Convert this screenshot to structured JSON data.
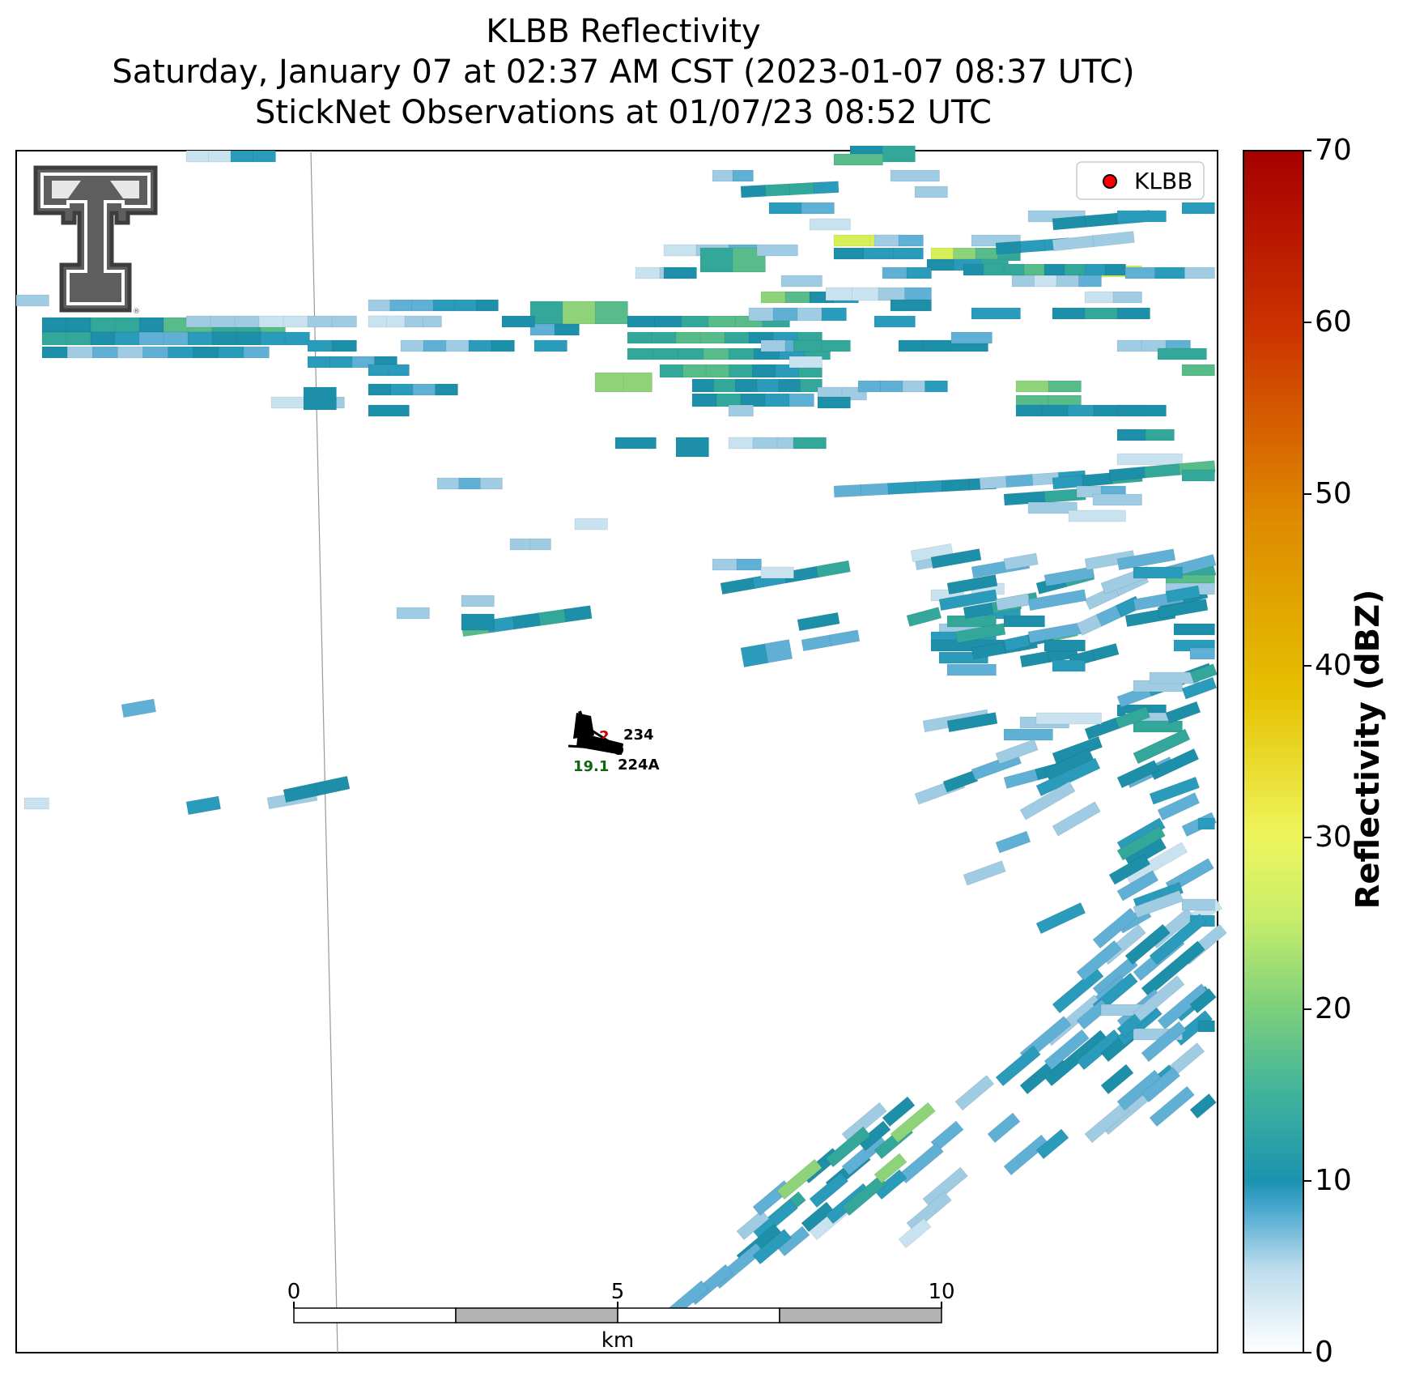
{
  "title": {
    "line1": "KLBB Reflectivity",
    "line2": "Saturday, January 07 at 02:37 AM CST (2023-01-07 08:37 UTC)",
    "line3": "StickNet Observations at 01/07/23 08:52 UTC"
  },
  "legend": {
    "label": "KLBB",
    "marker_color": "#ff0000"
  },
  "colorbar": {
    "label": "Reflectivity (dBZ)",
    "ticks": [
      "0",
      "10",
      "20",
      "30",
      "40",
      "50",
      "60",
      "70"
    ],
    "range": [
      0,
      70
    ]
  },
  "scalebar": {
    "ticks": [
      "0",
      "5",
      "10"
    ],
    "unit": "km"
  },
  "stations": [
    {
      "id": "234",
      "value_red": "2"
    },
    {
      "id": "224A",
      "value_green": "19.1"
    }
  ],
  "logo": "texas-tech-double-t-logo"
}
